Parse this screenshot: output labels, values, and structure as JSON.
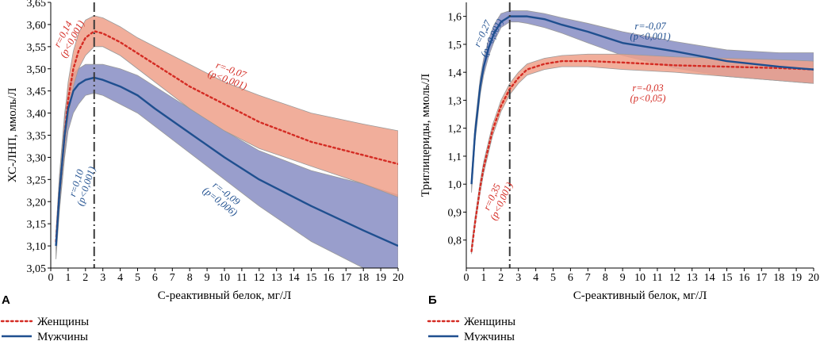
{
  "colors": {
    "women_line": "#d42b23",
    "women_band": "#eea08a",
    "men_line": "#1f4f8f",
    "men_band": "#8e93c6",
    "dashdot": "#3a3a3a"
  },
  "legend": [
    {
      "key": "women",
      "label": "Женщины",
      "style": "dotted"
    },
    {
      "key": "men",
      "label": "Мужчины",
      "style": "solid"
    }
  ],
  "chart_data": [
    {
      "panel_label": "А",
      "type": "line",
      "xlabel": "С-реактивный белок, мг/Л",
      "ylabel": "ХС-ЛНП, ммоль/Л",
      "xlim": [
        0,
        20
      ],
      "ylim": [
        3.05,
        3.65
      ],
      "x_ticks": [
        "0",
        "1",
        "2",
        "3",
        "4",
        "5",
        "6",
        "7",
        "8",
        "9",
        "10",
        "11",
        "12",
        "13",
        "14",
        "15",
        "16",
        "17",
        "18",
        "19",
        "20"
      ],
      "y_ticks": [
        "3,05",
        "3,10",
        "3,15",
        "3,20",
        "3,25",
        "3,30",
        "3,35",
        "3,40",
        "3,45",
        "3,50",
        "3,55",
        "3,60",
        "3,65"
      ],
      "y_tick_values": [
        3.05,
        3.1,
        3.15,
        3.2,
        3.25,
        3.3,
        3.35,
        3.4,
        3.45,
        3.5,
        3.55,
        3.6,
        3.65
      ],
      "vline_x": 2.5,
      "series": [
        {
          "name": "Женщины",
          "x": [
            0.3,
            0.5,
            0.8,
            1.0,
            1.3,
            1.6,
            2.0,
            2.5,
            3.0,
            4.0,
            5.0,
            6.0,
            8.0,
            10.0,
            12.0,
            15.0,
            18.0,
            20.0
          ],
          "y": [
            3.11,
            3.22,
            3.35,
            3.43,
            3.5,
            3.54,
            3.57,
            3.585,
            3.58,
            3.56,
            3.535,
            3.51,
            3.46,
            3.42,
            3.38,
            3.335,
            3.305,
            3.285
          ],
          "lower": [
            3.09,
            3.19,
            3.31,
            3.39,
            3.46,
            3.5,
            3.53,
            3.55,
            3.55,
            3.53,
            3.5,
            3.47,
            3.41,
            3.36,
            3.32,
            3.28,
            3.24,
            3.21
          ],
          "upper": [
            3.13,
            3.25,
            3.39,
            3.47,
            3.54,
            3.58,
            3.61,
            3.62,
            3.615,
            3.595,
            3.57,
            3.55,
            3.51,
            3.47,
            3.44,
            3.4,
            3.375,
            3.36
          ]
        },
        {
          "name": "Мужчины",
          "x": [
            0.3,
            0.5,
            0.8,
            1.0,
            1.3,
            1.6,
            2.0,
            2.5,
            3.0,
            4.0,
            5.0,
            6.0,
            8.0,
            10.0,
            12.0,
            15.0,
            18.0,
            20.0
          ],
          "y": [
            3.1,
            3.22,
            3.35,
            3.41,
            3.45,
            3.465,
            3.475,
            3.48,
            3.475,
            3.46,
            3.44,
            3.41,
            3.355,
            3.3,
            3.25,
            3.19,
            3.135,
            3.1
          ],
          "lower": [
            3.07,
            3.18,
            3.3,
            3.36,
            3.4,
            3.42,
            3.44,
            3.445,
            3.44,
            3.42,
            3.4,
            3.37,
            3.31,
            3.25,
            3.19,
            3.11,
            3.05,
            3.05
          ],
          "upper": [
            3.13,
            3.26,
            3.4,
            3.46,
            3.49,
            3.5,
            3.51,
            3.51,
            3.51,
            3.5,
            3.485,
            3.46,
            3.41,
            3.36,
            3.315,
            3.27,
            3.24,
            3.215
          ]
        }
      ],
      "annotations": [
        {
          "key": "w1",
          "series": "Женщины",
          "line1": "r=0,14",
          "line2": "(p<0,001)"
        },
        {
          "key": "w2",
          "series": "Женщины",
          "line1": "r=-0,07",
          "line2": "(p<0,001)"
        },
        {
          "key": "m1",
          "series": "Мужчины",
          "line1": "r=0,10",
          "line2": "(p<0,001)"
        },
        {
          "key": "m2",
          "series": "Мужчины",
          "line1": "r=-0,09",
          "line2": "(p=0,006)"
        }
      ]
    },
    {
      "panel_label": "Б",
      "type": "line",
      "xlabel": "С-реактивный белок, мг/Л",
      "ylabel": "Триглицериды, ммоль/Л",
      "xlim": [
        0,
        20
      ],
      "ylim": [
        0.7,
        1.65
      ],
      "x_ticks": [
        "0",
        "1",
        "2",
        "3",
        "4",
        "5",
        "6",
        "7",
        "8",
        "9",
        "10",
        "11",
        "12",
        "13",
        "14",
        "15",
        "16",
        "17",
        "18",
        "19",
        "20"
      ],
      "y_ticks": [
        "0,8",
        "0,9",
        "1,0",
        "1,1",
        "1,2",
        "1,3",
        "1,4",
        "1,5",
        "1,6"
      ],
      "y_tick_values": [
        0.8,
        0.9,
        1.0,
        1.1,
        1.2,
        1.3,
        1.4,
        1.5,
        1.6
      ],
      "vline_x": 2.5,
      "series": [
        {
          "name": "Женщины",
          "x": [
            0.3,
            0.5,
            0.8,
            1.0,
            1.5,
            2.0,
            2.5,
            3.0,
            3.5,
            4.5,
            5.5,
            7.0,
            9.0,
            12.0,
            15.0,
            18.0,
            20.0
          ],
          "y": [
            0.76,
            0.86,
            0.99,
            1.06,
            1.19,
            1.28,
            1.34,
            1.38,
            1.41,
            1.43,
            1.44,
            1.44,
            1.435,
            1.425,
            1.42,
            1.415,
            1.41
          ],
          "lower": [
            0.75,
            0.85,
            0.97,
            1.04,
            1.17,
            1.26,
            1.32,
            1.36,
            1.39,
            1.41,
            1.42,
            1.42,
            1.41,
            1.4,
            1.385,
            1.37,
            1.36
          ],
          "upper": [
            0.78,
            0.88,
            1.01,
            1.08,
            1.21,
            1.3,
            1.36,
            1.4,
            1.43,
            1.45,
            1.46,
            1.465,
            1.465,
            1.455,
            1.45,
            1.445,
            1.44
          ]
        },
        {
          "name": "Мужчины",
          "x": [
            0.3,
            0.5,
            0.8,
            1.0,
            1.3,
            1.6,
            2.0,
            2.5,
            3.0,
            3.5,
            4.5,
            5.5,
            7.0,
            9.0,
            12.0,
            15.0,
            18.0,
            20.0
          ],
          "y": [
            1.0,
            1.18,
            1.35,
            1.42,
            1.49,
            1.54,
            1.58,
            1.6,
            1.6,
            1.6,
            1.59,
            1.57,
            1.545,
            1.505,
            1.475,
            1.44,
            1.42,
            1.41
          ],
          "lower": [
            0.97,
            1.15,
            1.32,
            1.39,
            1.46,
            1.51,
            1.56,
            1.58,
            1.58,
            1.575,
            1.56,
            1.54,
            1.505,
            1.46,
            1.415,
            1.385,
            1.37,
            1.36
          ],
          "upper": [
            1.03,
            1.21,
            1.38,
            1.45,
            1.52,
            1.57,
            1.61,
            1.62,
            1.62,
            1.62,
            1.61,
            1.595,
            1.575,
            1.545,
            1.51,
            1.48,
            1.47,
            1.47
          ]
        }
      ],
      "annotations": [
        {
          "key": "m1",
          "series": "Мужчины",
          "line1": "r=0,27",
          "line2": "(p<0,001)"
        },
        {
          "key": "m2",
          "series": "Мужчины",
          "line1": "r=-0,07",
          "line2": "(p<0,001)"
        },
        {
          "key": "w1",
          "series": "Женщины",
          "line1": "r=0,35",
          "line2": "(p<0,001)"
        },
        {
          "key": "w2",
          "series": "Женщины",
          "line1": "r=-0,03",
          "line2": "(p<0,05)"
        }
      ]
    }
  ]
}
